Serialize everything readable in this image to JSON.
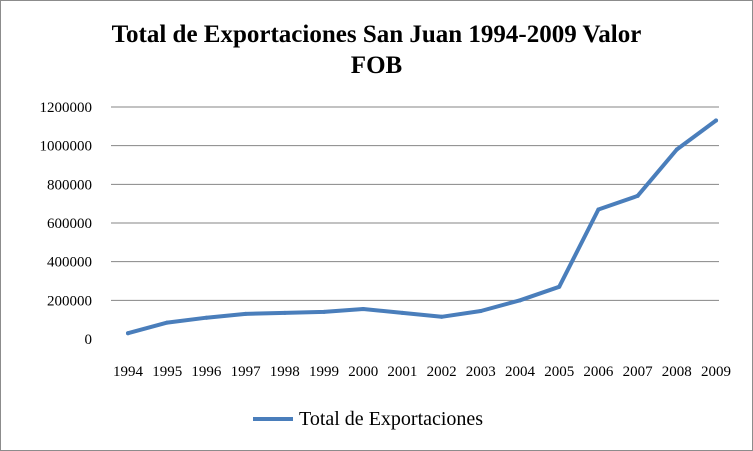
{
  "chart_data": {
    "type": "line",
    "title_line1": "Total de Exportaciones San Juan 1994-2009 Valor",
    "title_line2": "FOB",
    "categories": [
      "1994",
      "1995",
      "1996",
      "1997",
      "1998",
      "1999",
      "2000",
      "2001",
      "2002",
      "2003",
      "2004",
      "2005",
      "2006",
      "2007",
      "2008",
      "2009"
    ],
    "series": [
      {
        "name": "Total de Exportaciones",
        "color": "#4a7ebb",
        "values": [
          30000,
          85000,
          110000,
          130000,
          135000,
          140000,
          155000,
          135000,
          115000,
          145000,
          200000,
          270000,
          670000,
          740000,
          980000,
          1130000
        ]
      }
    ],
    "yticks": [
      "0",
      "200000",
      "400000",
      "600000",
      "800000",
      "1000000",
      "1200000"
    ],
    "ylim": [
      0,
      1200000
    ],
    "grid": true,
    "legend_position": "bottom"
  }
}
